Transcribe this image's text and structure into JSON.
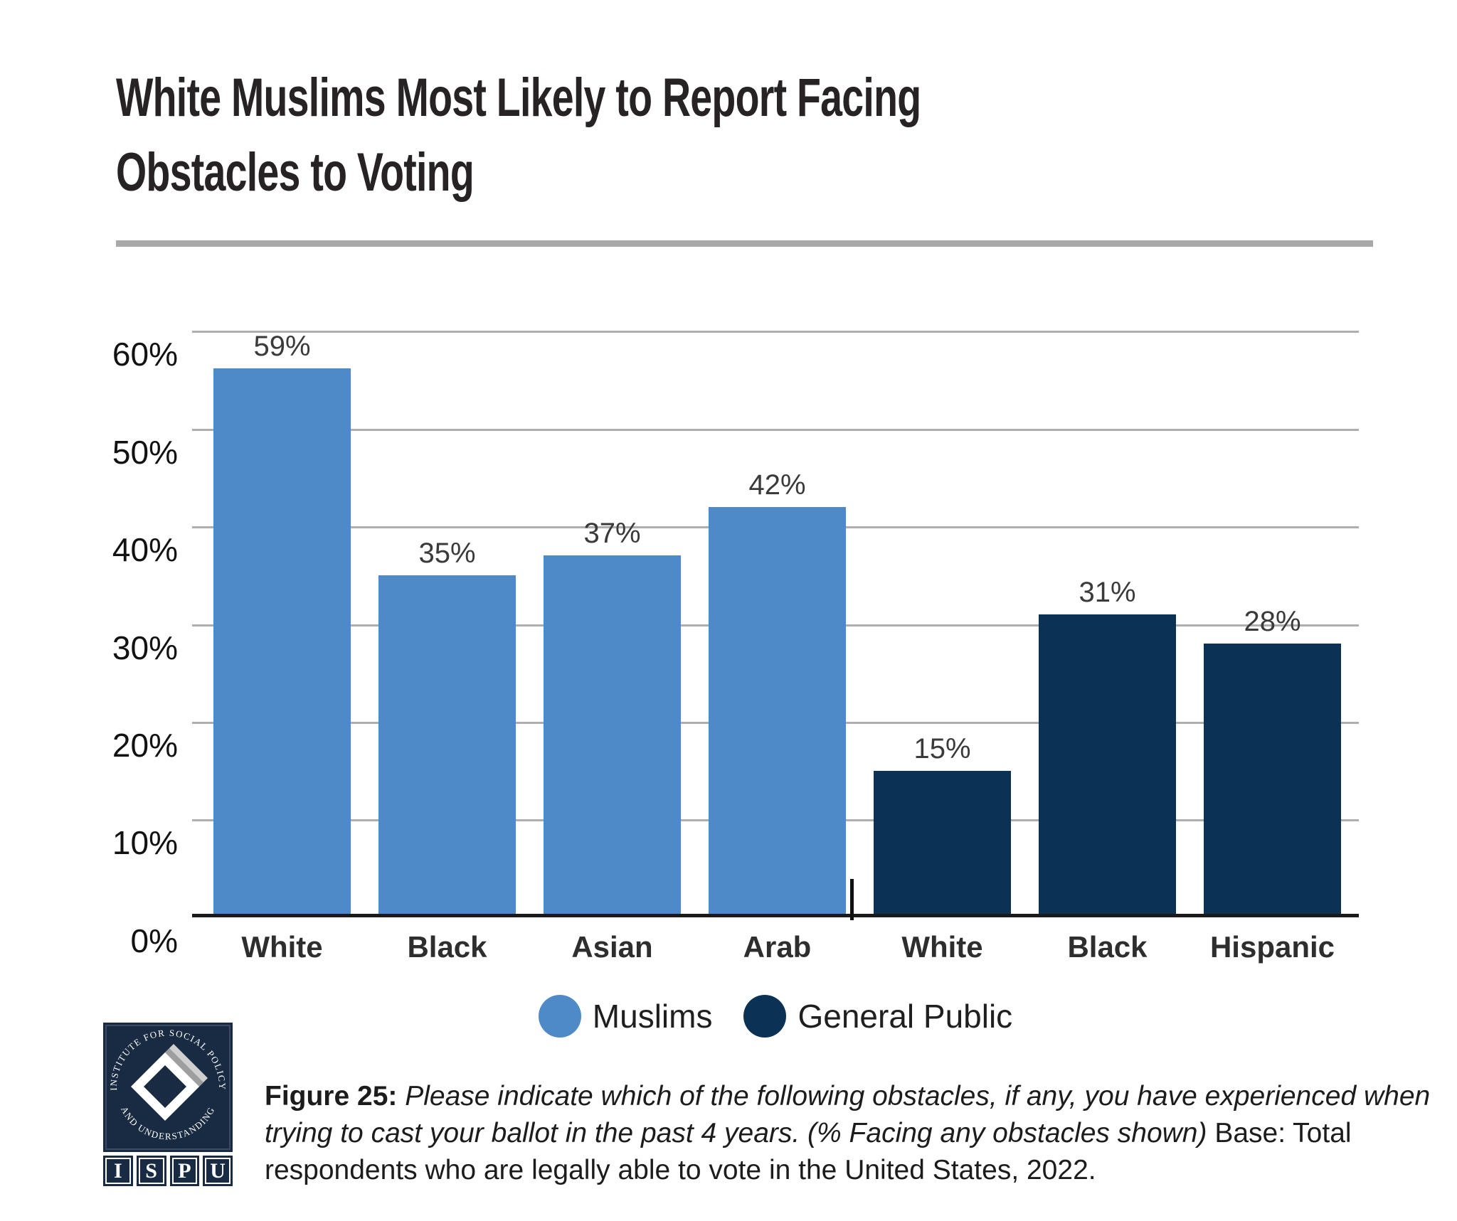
{
  "title": "White Muslims Most Likely to Report Facing Obstacles to Voting",
  "chart_data": {
    "type": "bar",
    "ylim": [
      0,
      60
    ],
    "ymax": 60,
    "grid": true,
    "yticks": [
      "60%",
      "50%",
      "40%",
      "30%",
      "20%",
      "10%",
      "0%"
    ],
    "categories": [
      "White",
      "Black",
      "Asian",
      "Arab",
      "White",
      "Black",
      "Hispanic"
    ],
    "series": [
      {
        "name": "Muslims",
        "values": [
          59,
          35,
          37,
          42,
          null,
          null,
          null
        ]
      },
      {
        "name": "General Public",
        "values": [
          null,
          null,
          null,
          null,
          15,
          31,
          28
        ]
      }
    ],
    "bars": [
      {
        "category": "White",
        "value": 59,
        "value_label": "59%",
        "series": "Muslims"
      },
      {
        "category": "Black",
        "value": 35,
        "value_label": "35%",
        "series": "Muslims"
      },
      {
        "category": "Asian",
        "value": 37,
        "value_label": "37%",
        "series": "Muslims"
      },
      {
        "category": "Arab",
        "value": 42,
        "value_label": "42%",
        "series": "Muslims"
      },
      {
        "category": "White",
        "value": 15,
        "value_label": "15%",
        "series": "General Public"
      },
      {
        "category": "Black",
        "value": 31,
        "value_label": "31%",
        "series": "General Public"
      },
      {
        "category": "Hispanic",
        "value": 28,
        "value_label": "28%",
        "series": "General Public"
      }
    ],
    "series_colors": {
      "Muslims": "#4E8BC6",
      "General Public": "#0B3254"
    },
    "legend_position": "bottom"
  },
  "legend": [
    {
      "label": "Muslims",
      "color": "#4E8BC6"
    },
    {
      "label": "General Public",
      "color": "#0B3254"
    }
  ],
  "caption": {
    "figure_label": "Figure 25:",
    "question_italic": "Please indicate which of the following obstacles, if any, you have experienced when trying to cast your ballot in the past 4 years. (% Facing any obstacles shown)",
    "base_text": "Base: Total respondents who are legally able to vote in the United States, 2022."
  },
  "logo": {
    "arc_top": "INSTITUTE FOR SOCIAL POLICY",
    "arc_bottom": "AND UNDERSTANDING",
    "letters": [
      "I",
      "S",
      "P",
      "U"
    ],
    "navy": "#192a43"
  }
}
